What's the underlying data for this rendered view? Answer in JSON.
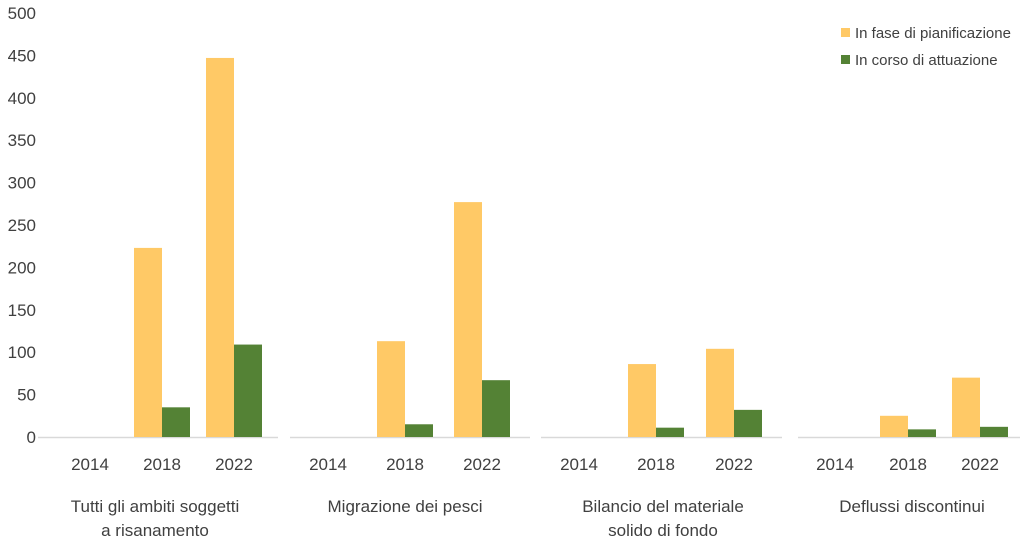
{
  "chart_data": {
    "type": "bar",
    "title": "",
    "xlabel": "",
    "ylabel": "",
    "ylim": [
      0,
      500
    ],
    "yticks": [
      0,
      50,
      100,
      150,
      200,
      250,
      300,
      350,
      400,
      450,
      500
    ],
    "grid": false,
    "legend_position": "top-right",
    "groups": [
      {
        "label_lines": [
          "Tutti gli ambiti soggetti",
          "a risanamento"
        ],
        "categories": [
          "2014",
          "2018",
          "2022"
        ],
        "series": [
          {
            "name": "In fase di pianificazione",
            "values": [
              0,
              223,
              447
            ]
          },
          {
            "name": "In corso di attuazione",
            "values": [
              0,
              35,
              109
            ]
          }
        ]
      },
      {
        "label_lines": [
          "Migrazione dei pesci"
        ],
        "categories": [
          "2014",
          "2018",
          "2022"
        ],
        "series": [
          {
            "name": "In fase di pianificazione",
            "values": [
              0,
              113,
              277
            ]
          },
          {
            "name": "In corso di attuazione",
            "values": [
              0,
              15,
              67
            ]
          }
        ]
      },
      {
        "label_lines": [
          "Bilancio del materiale",
          "solido di fondo"
        ],
        "categories": [
          "2014",
          "2018",
          "2022"
        ],
        "series": [
          {
            "name": "In fase di pianificazione",
            "values": [
              0,
              86,
              104
            ]
          },
          {
            "name": "In corso di attuazione",
            "values": [
              0,
              11,
              32
            ]
          }
        ]
      },
      {
        "label_lines": [
          "Deflussi discontinui"
        ],
        "categories": [
          "2014",
          "2018",
          "2022"
        ],
        "series": [
          {
            "name": "In fase di pianificazione",
            "values": [
              0,
              25,
              70
            ]
          },
          {
            "name": "In corso di attuazione",
            "values": [
              0,
              9,
              12
            ]
          }
        ]
      }
    ],
    "legend": [
      {
        "name": "In fase di pianificazione",
        "color": "#FFC966"
      },
      {
        "name": "In corso di attuazione",
        "color": "#548235"
      }
    ]
  }
}
